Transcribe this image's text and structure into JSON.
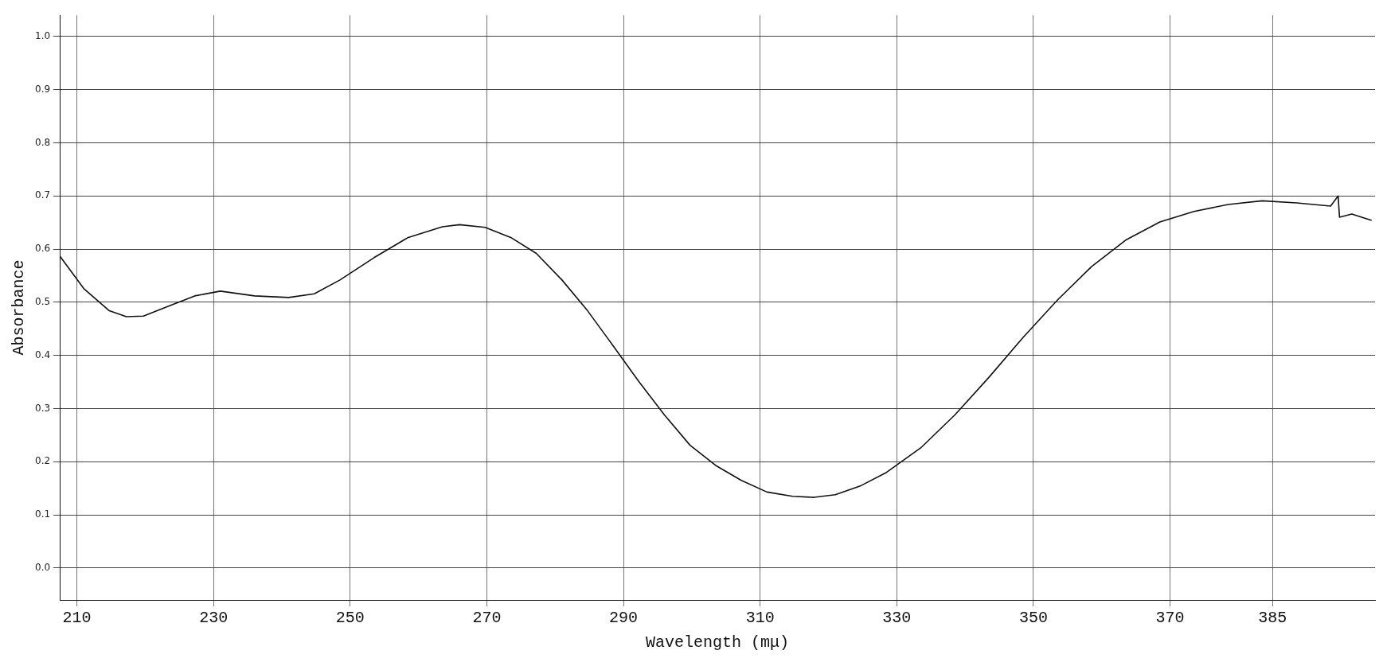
{
  "chart_data": {
    "type": "line",
    "xlabel": "Wavelength (mμ)",
    "ylabel": "Absorbance",
    "x": [
      207.5,
      211,
      214.75,
      217.25,
      219.75,
      223.5,
      227.25,
      231,
      236,
      241,
      244.75,
      248.5,
      253.5,
      258.5,
      263.5,
      266,
      269.75,
      273.5,
      277.25,
      281,
      284.75,
      288.5,
      292.25,
      296,
      299.75,
      303.5,
      307.25,
      311,
      314.75,
      317.9,
      321,
      324.75,
      328.5,
      333.5,
      338.5,
      343.5,
      348.5,
      353.5,
      358.5,
      363.5,
      368.5,
      373.5,
      378.5,
      383.5,
      388.5,
      393.5,
      394.6,
      394.8,
      396.6,
      399.5
    ],
    "series": [
      {
        "color": "#111111",
        "values": [
          0.587,
          0.526,
          0.484,
          0.473,
          0.474,
          0.493,
          0.512,
          0.521,
          0.512,
          0.509,
          0.516,
          0.542,
          0.584,
          0.622,
          0.642,
          0.646,
          0.641,
          0.622,
          0.592,
          0.542,
          0.484,
          0.418,
          0.351,
          0.288,
          0.231,
          0.193,
          0.165,
          0.143,
          0.135,
          0.133,
          0.138,
          0.155,
          0.18,
          0.226,
          0.288,
          0.359,
          0.434,
          0.504,
          0.567,
          0.617,
          0.651,
          0.671,
          0.684,
          0.691,
          0.687,
          0.681,
          0.7,
          0.66,
          0.666,
          0.654
        ]
      }
    ],
    "xlim": [
      207.5,
      400
    ],
    "ylim": [
      -0.06,
      1.04
    ],
    "xticks": [
      210,
      230,
      250,
      270,
      290,
      310,
      330,
      350,
      370,
      385
    ],
    "yticks": [
      {
        "value": 0,
        "label": "0.0"
      },
      0.1,
      0.2,
      0.3,
      0.4,
      0.5,
      0.6,
      0.7,
      0.8,
      0.9,
      {
        "value": 1,
        "label": "1.0"
      }
    ],
    "grid": true,
    "marker": "none",
    "line_style": "solid"
  }
}
